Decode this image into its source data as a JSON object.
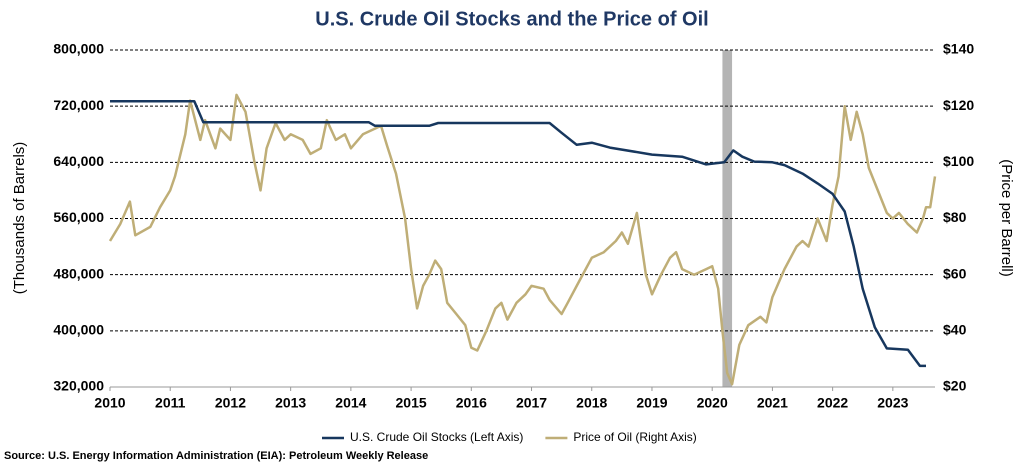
{
  "chart_data": {
    "type": "line",
    "title": "U.S. Crude Oil Stocks and the Price of Oil",
    "y_label": "(Thousands of Barrels)",
    "y2_label": "(Price per Barrell)",
    "source": "Source: U.S. Energy Information Administration (EIA): Petroleum Weekly Release",
    "xlim": [
      2010,
      2023.7
    ],
    "xticks": [
      2010,
      2011,
      2012,
      2013,
      2014,
      2015,
      2016,
      2017,
      2018,
      2019,
      2020,
      2021,
      2022,
      2023
    ],
    "ylim": [
      320000,
      800000
    ],
    "yticks": [
      {
        "value": 320000,
        "label": "320,000"
      },
      {
        "value": 400000,
        "label": "400,000"
      },
      {
        "value": 480000,
        "label": "480,000"
      },
      {
        "value": 560000,
        "label": "560,000"
      },
      {
        "value": 640000,
        "label": "640,000"
      },
      {
        "value": 720000,
        "label": "720,000"
      },
      {
        "value": 800000,
        "label": "800,000"
      }
    ],
    "y2lim": [
      20,
      140
    ],
    "y2ticks": [
      {
        "value": 20,
        "label": "$20"
      },
      {
        "value": 40,
        "label": "$40"
      },
      {
        "value": 60,
        "label": "$60"
      },
      {
        "value": 80,
        "label": "$80"
      },
      {
        "value": 100,
        "label": "$100"
      },
      {
        "value": 120,
        "label": "$120"
      },
      {
        "value": 140,
        "label": "$140"
      }
    ],
    "grid": true,
    "legend": "bottom",
    "recession": [
      2020.17,
      2020.33
    ],
    "recession_color": "#b4b4b4",
    "series": [
      {
        "name": "U.S. Crude Oil Stocks (Left Axis)",
        "color": "#17375e",
        "axis": "y",
        "x": [
          2010,
          2011.4,
          2011.55,
          2014.3,
          2014.4,
          2015.3,
          2015.45,
          2017.3,
          2017.5,
          2017.75,
          2018.0,
          2018.3,
          2019.0,
          2019.5,
          2019.9,
          2020.2,
          2020.35,
          2020.5,
          2020.7,
          2021.0,
          2021.2,
          2021.5,
          2021.75,
          2022.0,
          2022.2,
          2022.35,
          2022.5,
          2022.7,
          2022.9,
          2023.25,
          2023.45,
          2023.55
        ],
        "values": [
          727000,
          727000,
          697000,
          697000,
          692000,
          692000,
          696000,
          696000,
          682000,
          665000,
          668000,
          661000,
          651000,
          648000,
          637000,
          640000,
          657000,
          648000,
          641000,
          640000,
          636000,
          624000,
          610000,
          595000,
          570000,
          520000,
          460000,
          405000,
          375000,
          373000,
          350000,
          350000
        ]
      },
      {
        "name": "Price of Oil (Right Axis)",
        "color": "#bfae77",
        "axis": "y2",
        "x": [
          2010.0,
          2010.17,
          2010.33,
          2010.42,
          2010.67,
          2010.83,
          2011.0,
          2011.08,
          2011.25,
          2011.33,
          2011.5,
          2011.58,
          2011.75,
          2011.83,
          2012.0,
          2012.1,
          2012.25,
          2012.4,
          2012.5,
          2012.6,
          2012.75,
          2012.9,
          2013.0,
          2013.2,
          2013.33,
          2013.5,
          2013.6,
          2013.75,
          2013.9,
          2014.0,
          2014.2,
          2014.4,
          2014.5,
          2014.6,
          2014.75,
          2014.9,
          2015.0,
          2015.1,
          2015.2,
          2015.3,
          2015.4,
          2015.5,
          2015.6,
          2015.75,
          2015.9,
          2016.0,
          2016.1,
          2016.25,
          2016.4,
          2016.5,
          2016.6,
          2016.75,
          2016.9,
          2017.0,
          2017.2,
          2017.3,
          2017.5,
          2017.6,
          2017.75,
          2017.9,
          2018.0,
          2018.2,
          2018.4,
          2018.5,
          2018.6,
          2018.75,
          2018.9,
          2019.0,
          2019.15,
          2019.3,
          2019.4,
          2019.5,
          2019.7,
          2019.9,
          2020.0,
          2020.1,
          2020.17,
          2020.25,
          2020.33,
          2020.45,
          2020.6,
          2020.8,
          2020.9,
          2021.0,
          2021.2,
          2021.4,
          2021.5,
          2021.6,
          2021.75,
          2021.9,
          2022.0,
          2022.1,
          2022.2,
          2022.3,
          2022.4,
          2022.5,
          2022.6,
          2022.75,
          2022.9,
          2023.0,
          2023.1,
          2023.25,
          2023.4,
          2023.5,
          2023.55,
          2023.62,
          2023.7
        ],
        "values": [
          72,
          78,
          86,
          74,
          77,
          84,
          90,
          95,
          110,
          122,
          108,
          115,
          105,
          112,
          108,
          124,
          118,
          100,
          90,
          105,
          114,
          108,
          110,
          108,
          103,
          105,
          115,
          108,
          110,
          105,
          110,
          112,
          113,
          106,
          96,
          80,
          62,
          48,
          56,
          60,
          65,
          62,
          50,
          46,
          42,
          34,
          33,
          40,
          48,
          50,
          44,
          50,
          53,
          56,
          55,
          51,
          46,
          50,
          56,
          62,
          66,
          68,
          72,
          75,
          71,
          82,
          60,
          53,
          60,
          66,
          68,
          62,
          60,
          62,
          63,
          55,
          40,
          25,
          21,
          35,
          42,
          45,
          43,
          52,
          62,
          70,
          72,
          70,
          80,
          72,
          85,
          95,
          120,
          108,
          118,
          110,
          98,
          90,
          82,
          80,
          82,
          78,
          75,
          80,
          84,
          84,
          95
        ]
      }
    ]
  }
}
